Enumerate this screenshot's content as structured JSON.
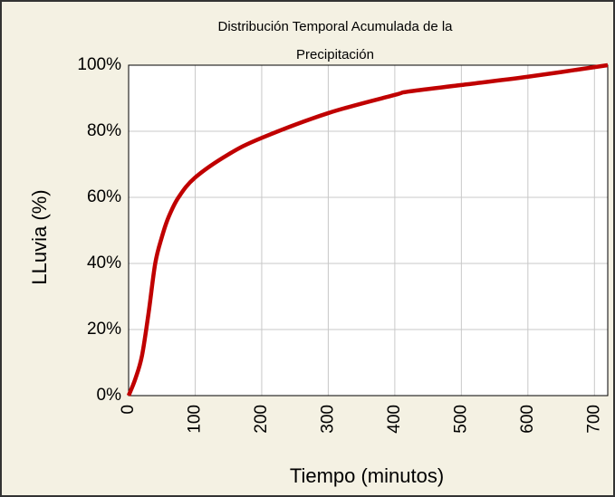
{
  "chart_data": {
    "type": "line",
    "title": [
      "Distribución Temporal Acumulada de la",
      "Precipitación"
    ],
    "x_label": "Tiempo (minutos)",
    "y_label": "LLuvia (%)",
    "x": [
      0,
      10,
      20,
      30,
      40,
      50,
      60,
      75,
      100,
      150,
      200,
      300,
      400,
      420,
      500,
      600,
      720
    ],
    "series": [
      {
        "name": "Precipitación",
        "color": "#c00000",
        "values": [
          0,
          5,
          12,
          25,
          40,
          48,
          54,
          60,
          66,
          73,
          78,
          85.5,
          91,
          92,
          94,
          96.5,
          100
        ]
      }
    ],
    "xlim": [
      0,
      720
    ],
    "xticks": [
      0,
      100,
      200,
      300,
      400,
      500,
      600,
      700
    ],
    "ylim": [
      0,
      100
    ],
    "yticks": [
      {
        "value": 0,
        "label": "0%"
      },
      {
        "value": 20,
        "label": "20%"
      },
      {
        "value": 40,
        "label": "40%"
      },
      {
        "value": 60,
        "label": "60%"
      },
      {
        "value": 80,
        "label": "80%"
      },
      {
        "value": 100,
        "label": "100%"
      }
    ],
    "grid": true
  }
}
